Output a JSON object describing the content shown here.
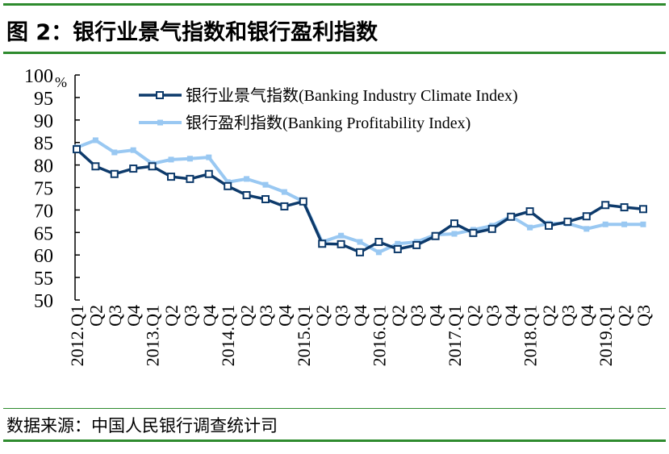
{
  "title": "图 2：银行业景气指数和银行盈利指数",
  "source": "数据来源：中国人民银行调查统计司",
  "colors": {
    "climate": "#0d3a6b",
    "profit": "#99c8f2",
    "rule": "#2e8b2e"
  },
  "chart_data": {
    "type": "line",
    "yunit": "%",
    "ylim": [
      50,
      100
    ],
    "yticks": [
      50,
      55,
      60,
      65,
      70,
      75,
      80,
      85,
      90,
      95,
      100
    ],
    "grid": false,
    "legend": "top-center",
    "categories": [
      "2012.Q1",
      "Q2",
      "Q3",
      "Q4",
      "2013.Q1",
      "Q2",
      "Q3",
      "Q4",
      "2014.Q1",
      "Q2",
      "Q3",
      "Q4",
      "2015.Q1",
      "Q2",
      "Q3",
      "Q4",
      "2016.Q1",
      "Q2",
      "Q3",
      "Q4",
      "2017.Q1",
      "Q2",
      "Q3",
      "Q4",
      "2018.Q1",
      "Q2",
      "Q3",
      "Q4",
      "2019.Q1",
      "Q2",
      "Q3"
    ],
    "series": [
      {
        "name": "银行业景气指数(Banking Industry Climate Index)",
        "marker": "hollow-square",
        "values": [
          83.5,
          79.7,
          78.0,
          79.2,
          79.7,
          77.4,
          76.9,
          78.0,
          75.3,
          73.3,
          72.4,
          70.8,
          71.9,
          62.5,
          62.4,
          60.6,
          62.9,
          61.3,
          62.2,
          64.2,
          67.0,
          64.9,
          65.8,
          68.5,
          69.7,
          66.5,
          67.4,
          68.6,
          71.1,
          70.6,
          70.2
        ]
      },
      {
        "name": "银行盈利指数(Banking Profitability Index)",
        "marker": "filled-square",
        "values": [
          83.9,
          85.5,
          82.8,
          83.3,
          80.3,
          81.2,
          81.4,
          81.7,
          76.2,
          76.9,
          75.6,
          74.0,
          71.9,
          62.9,
          64.3,
          62.9,
          60.6,
          62.5,
          62.9,
          64.5,
          64.7,
          65.6,
          66.5,
          68.6,
          66.1,
          67.0,
          67.0,
          65.8,
          66.8,
          66.8,
          66.8
        ]
      }
    ]
  }
}
